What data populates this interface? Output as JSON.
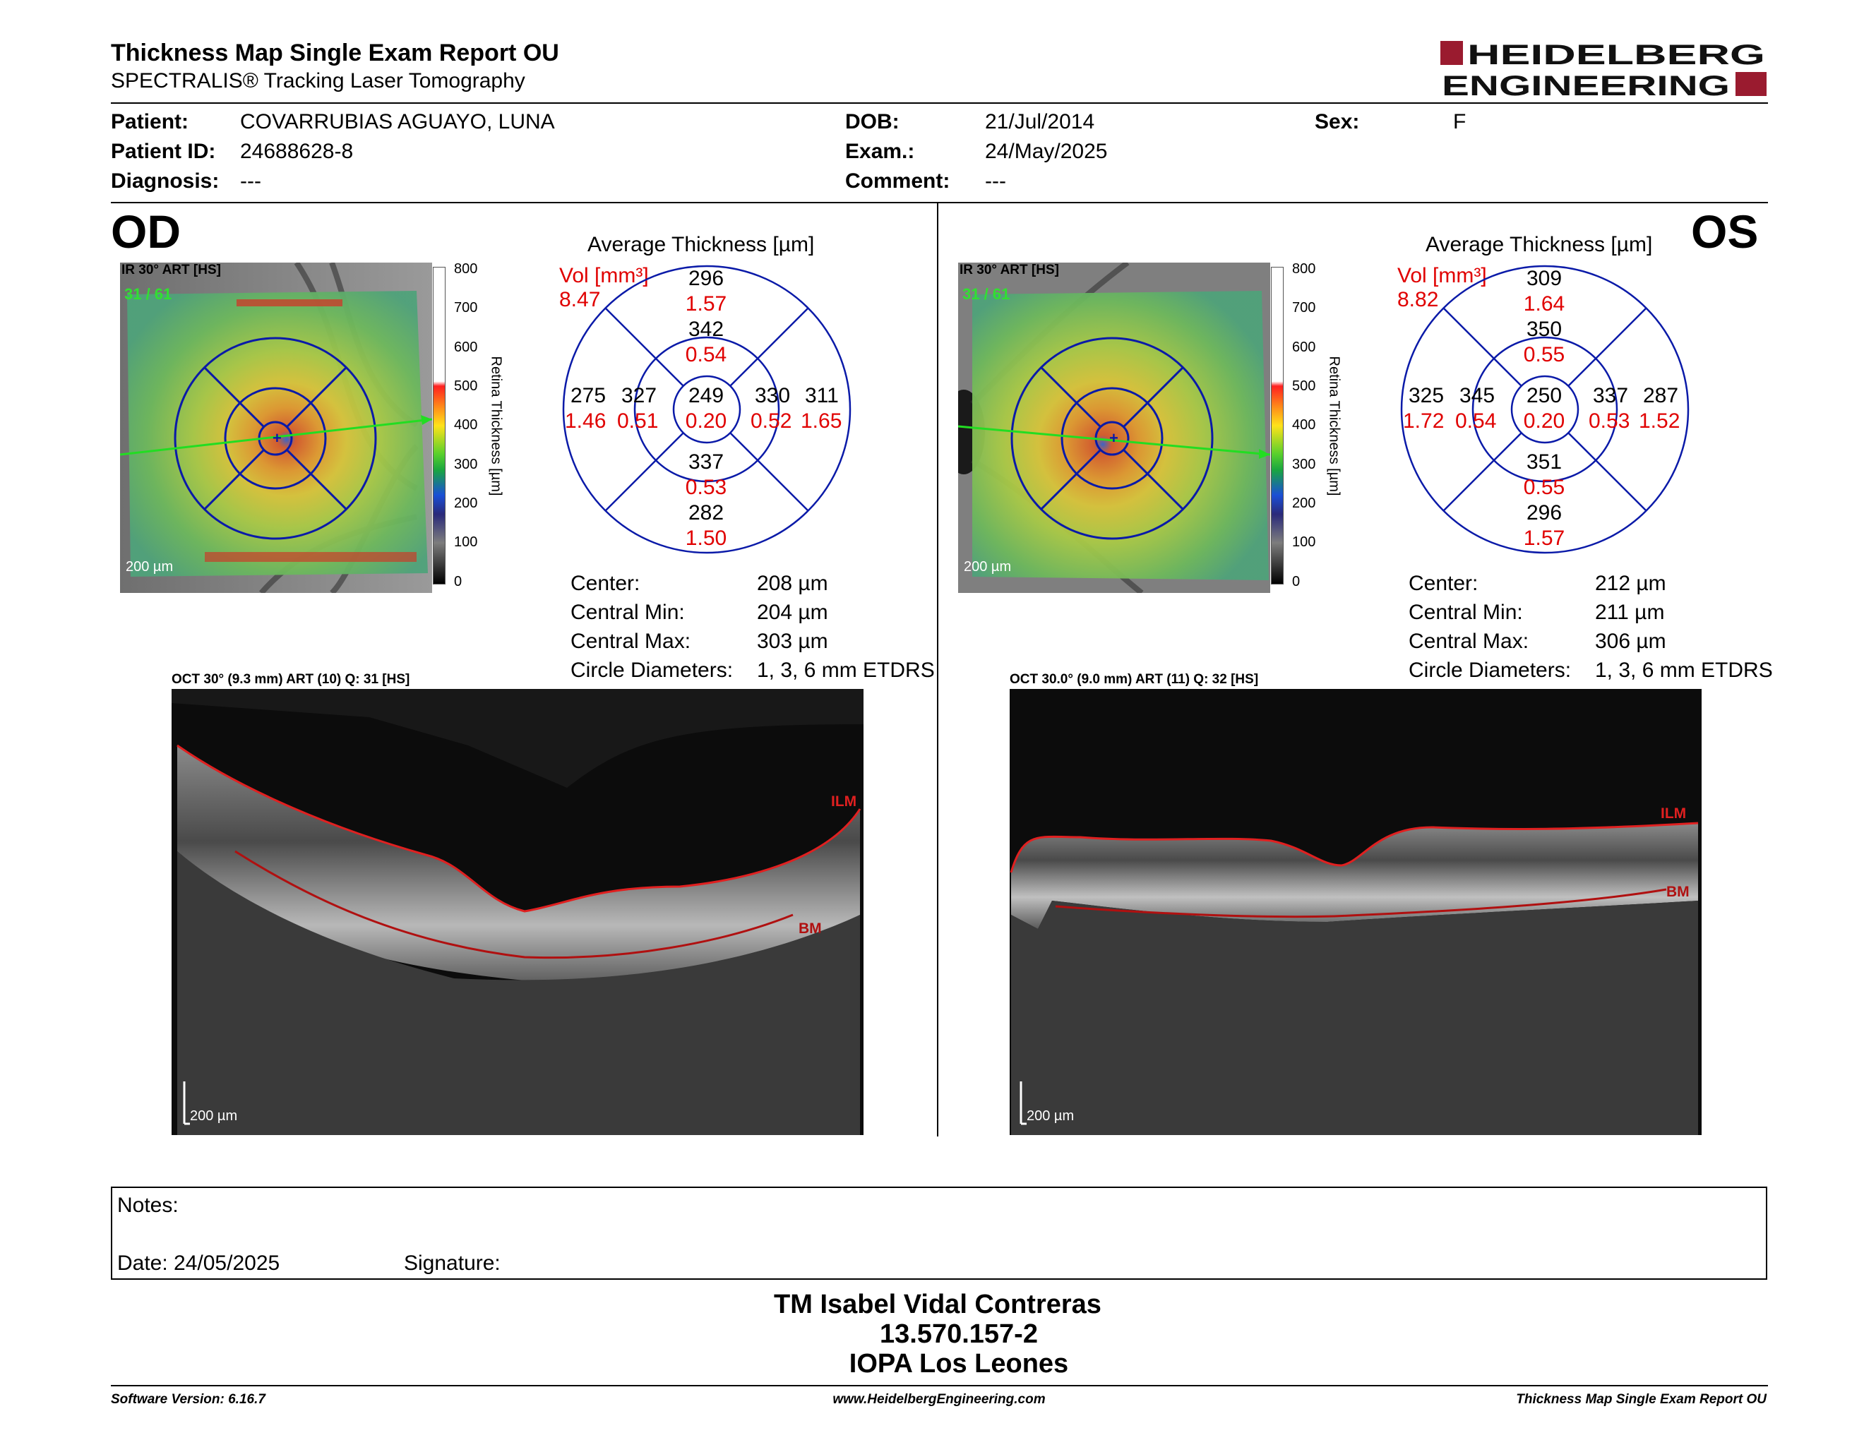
{
  "header": {
    "title": "Thickness Map Single Exam Report OU",
    "subtitle": "SPECTRALIS® Tracking Laser Tomography",
    "logo_line1": "HEIDELBERG",
    "logo_line2": "ENGINEERING"
  },
  "patient": {
    "patient_label": "Patient:",
    "patient_value": "COVARRUBIAS AGUAYO, LUNA",
    "id_label": "Patient ID:",
    "id_value": "24688628-8",
    "diagnosis_label": "Diagnosis:",
    "diagnosis_value": "---",
    "dob_label": "DOB:",
    "dob_value": "21/Jul/2014",
    "exam_label": "Exam.:",
    "exam_value": "24/May/2025",
    "comment_label": "Comment:",
    "comment_value": "---",
    "sex_label": "Sex:",
    "sex_value": "F"
  },
  "od": {
    "eye_label": "OD",
    "ir_label": "IR 30° ART [HS]",
    "ir_counter": "31 / 61",
    "scale_bar": "200 µm",
    "colorbar_ticks": [
      "800",
      "700",
      "600",
      "500",
      "400",
      "300",
      "200",
      "100",
      "0"
    ],
    "colorbar_title": "Retina Thickness [µm]",
    "avg_title": "Average Thickness [µm]",
    "vol_label": "Vol [mm³]",
    "vol_total": "8.47",
    "sectors": {
      "outer_sup": {
        "t": "296",
        "v": "1.57"
      },
      "inner_sup": {
        "t": "342",
        "v": "0.54"
      },
      "outer_temp": {
        "t": "275",
        "v": "1.46"
      },
      "inner_temp": {
        "t": "327",
        "v": "0.51"
      },
      "center": {
        "t": "249",
        "v": "0.20"
      },
      "inner_nas": {
        "t": "330",
        "v": "0.52"
      },
      "outer_nas": {
        "t": "311",
        "v": "1.65"
      },
      "inner_inf": {
        "t": "337",
        "v": "0.53"
      },
      "outer_inf": {
        "t": "282",
        "v": "1.50"
      }
    },
    "stats": [
      {
        "label": "Center:",
        "value": "208 µm"
      },
      {
        "label": "Central Min:",
        "value": "204 µm"
      },
      {
        "label": "Central Max:",
        "value": "303 µm"
      },
      {
        "label": "Circle Diameters:",
        "value": "1, 3, 6 mm ETDRS"
      }
    ],
    "oct_label": "OCT 30° (9.3 mm) ART (10) Q: 31 [HS]",
    "ilm": "ILM",
    "bm": "BM",
    "oct_scale": "200 µm"
  },
  "os": {
    "eye_label": "OS",
    "ir_label": "IR 30° ART [HS]",
    "ir_counter": "31 / 61",
    "scale_bar": "200 µm",
    "colorbar_ticks": [
      "800",
      "700",
      "600",
      "500",
      "400",
      "300",
      "200",
      "100",
      "0"
    ],
    "colorbar_title": "Retina Thickness [µm]",
    "avg_title": "Average Thickness [µm]",
    "vol_label": "Vol [mm³]",
    "vol_total": "8.82",
    "sectors": {
      "outer_sup": {
        "t": "309",
        "v": "1.64"
      },
      "inner_sup": {
        "t": "350",
        "v": "0.55"
      },
      "outer_temp": {
        "t": "325",
        "v": "1.72"
      },
      "inner_temp": {
        "t": "345",
        "v": "0.54"
      },
      "center": {
        "t": "250",
        "v": "0.20"
      },
      "inner_nas": {
        "t": "337",
        "v": "0.53"
      },
      "outer_nas": {
        "t": "287",
        "v": "1.52"
      },
      "inner_inf": {
        "t": "351",
        "v": "0.55"
      },
      "outer_inf": {
        "t": "296",
        "v": "1.57"
      }
    },
    "stats": [
      {
        "label": "Center:",
        "value": "212 µm"
      },
      {
        "label": "Central Min:",
        "value": "211 µm"
      },
      {
        "label": "Central Max:",
        "value": "306 µm"
      },
      {
        "label": "Circle Diameters:",
        "value": "1, 3, 6 mm ETDRS"
      }
    ],
    "oct_label": "OCT 30.0° (9.0 mm) ART (11) Q: 32 [HS]",
    "ilm": "ILM",
    "bm": "BM",
    "oct_scale": "200 µm"
  },
  "notes": {
    "notes_label": "Notes:",
    "date_label": "Date: 24/05/2025",
    "signature_label": "Signature:"
  },
  "signature": {
    "name": "TM Isabel Vidal Contreras",
    "rut": "13.570.157-2",
    "clinic": "IOPA Los Leones"
  },
  "footer": {
    "software": "Software Version: 6.16.7",
    "url": "www.HeidelbergEngineering.com",
    "report": "Thickness Map Single Exam Report OU"
  },
  "colors": {
    "volume_red": "#e00000",
    "grid_blue": "#0a1aa8",
    "logo_red": "#9a1b2f",
    "ilm_red": "#e02020"
  }
}
